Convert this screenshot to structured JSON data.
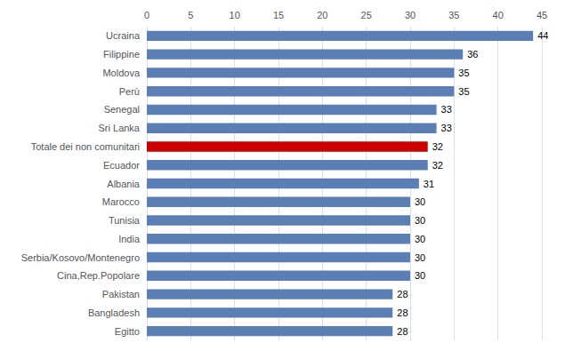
{
  "chart_data": {
    "type": "bar",
    "orientation": "horizontal",
    "categories": [
      "Egitto",
      "Bangladesh",
      "Pakistan",
      "Cina,Rep.Popolare",
      "Serbia/Kosovo/Montenegro",
      "India",
      "Tunisia",
      "Marocco",
      "Albania",
      "Ecuador",
      "Totale dei non comunitari",
      "Sri Lanka",
      "Senegal",
      "Perù",
      "Moldova",
      "Filippine",
      "Ucraina"
    ],
    "values": [
      28,
      28,
      28,
      30,
      30,
      30,
      30,
      30,
      31,
      32,
      32,
      33,
      33,
      35,
      35,
      36,
      44
    ],
    "colors": [
      "#5b7fb5",
      "#5b7fb5",
      "#5b7fb5",
      "#5b7fb5",
      "#5b7fb5",
      "#5b7fb5",
      "#5b7fb5",
      "#5b7fb5",
      "#5b7fb5",
      "#5b7fb5",
      "#cc0000",
      "#5b7fb5",
      "#5b7fb5",
      "#5b7fb5",
      "#5b7fb5",
      "#5b7fb5",
      "#5b7fb5"
    ],
    "xlim": [
      0,
      45
    ],
    "xticks": [
      0,
      5,
      10,
      15,
      20,
      25,
      30,
      35,
      40,
      45
    ],
    "grid": true,
    "data_labels": true
  }
}
